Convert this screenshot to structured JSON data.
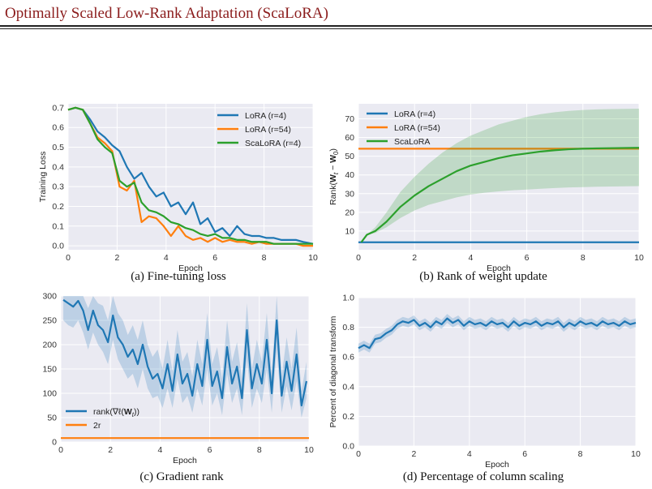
{
  "header": {
    "title": "Optimally Scaled Low-Rank Adaptation (ScaLoRA)"
  },
  "captions": {
    "a": "(a) Fine-tuning loss",
    "b": "(b) Rank of weight update",
    "c": "(c) Gradient rank",
    "d": "(d) Percentage of column scaling"
  },
  "colors": {
    "blue": "#1f77b4",
    "orange": "#ff7f0e",
    "green": "#2ca02c",
    "panel_bg": "#eaeaf2",
    "grid": "#ffffff"
  },
  "chart_data": [
    {
      "id": "a",
      "type": "line",
      "xlabel": "Epoch",
      "ylabel": "Training Loss",
      "xlim": [
        0,
        10
      ],
      "ylim": [
        -0.02,
        0.72
      ],
      "xticks": [
        "0",
        "2",
        "4",
        "6",
        "8",
        "10"
      ],
      "yticks": [
        "0.0",
        "0.1",
        "0.2",
        "0.3",
        "0.4",
        "0.5",
        "0.6",
        "0.7"
      ],
      "legend": "top-right",
      "grid": true,
      "series": [
        {
          "name": "LoRA (r=4)",
          "color": "blue",
          "x": [
            0,
            0.3,
            0.6,
            0.9,
            1.2,
            1.5,
            1.8,
            2.1,
            2.4,
            2.7,
            3.0,
            3.3,
            3.6,
            3.9,
            4.2,
            4.5,
            4.8,
            5.1,
            5.4,
            5.7,
            6.0,
            6.3,
            6.6,
            6.9,
            7.2,
            7.5,
            7.8,
            8.1,
            8.4,
            8.7,
            9.0,
            9.3,
            9.6,
            10
          ],
          "y": [
            0.69,
            0.7,
            0.69,
            0.64,
            0.58,
            0.55,
            0.51,
            0.48,
            0.4,
            0.34,
            0.37,
            0.3,
            0.25,
            0.27,
            0.2,
            0.22,
            0.16,
            0.22,
            0.11,
            0.14,
            0.07,
            0.09,
            0.05,
            0.1,
            0.06,
            0.05,
            0.05,
            0.04,
            0.04,
            0.03,
            0.03,
            0.03,
            0.02,
            0.01
          ]
        },
        {
          "name": "LoRA (r=54)",
          "color": "orange",
          "x": [
            0,
            0.3,
            0.6,
            0.9,
            1.2,
            1.5,
            1.8,
            2.1,
            2.4,
            2.7,
            3.0,
            3.3,
            3.6,
            3.9,
            4.2,
            4.5,
            4.8,
            5.1,
            5.4,
            5.7,
            6.0,
            6.3,
            6.6,
            6.9,
            7.2,
            7.5,
            7.8,
            8.1,
            8.4,
            8.7,
            9.0,
            9.3,
            9.6,
            10
          ],
          "y": [
            0.69,
            0.7,
            0.69,
            0.62,
            0.55,
            0.52,
            0.48,
            0.3,
            0.28,
            0.33,
            0.12,
            0.15,
            0.14,
            0.1,
            0.05,
            0.1,
            0.05,
            0.03,
            0.04,
            0.02,
            0.04,
            0.02,
            0.03,
            0.02,
            0.02,
            0.01,
            0.02,
            0.01,
            0.01,
            0.01,
            0.01,
            0.01,
            0.0,
            0.0
          ]
        },
        {
          "name": "ScaLoRA (r=4)",
          "color": "green",
          "x": [
            0,
            0.3,
            0.6,
            0.9,
            1.2,
            1.5,
            1.8,
            2.1,
            2.4,
            2.7,
            3.0,
            3.3,
            3.6,
            3.9,
            4.2,
            4.5,
            4.8,
            5.1,
            5.4,
            5.7,
            6.0,
            6.3,
            6.6,
            6.9,
            7.2,
            7.5,
            7.8,
            8.1,
            8.4,
            8.7,
            9.0,
            9.3,
            9.6,
            10
          ],
          "y": [
            0.69,
            0.7,
            0.69,
            0.62,
            0.54,
            0.5,
            0.47,
            0.33,
            0.3,
            0.32,
            0.22,
            0.18,
            0.17,
            0.15,
            0.12,
            0.11,
            0.09,
            0.08,
            0.06,
            0.05,
            0.06,
            0.04,
            0.04,
            0.03,
            0.03,
            0.02,
            0.02,
            0.02,
            0.01,
            0.01,
            0.01,
            0.01,
            0.01,
            0.01
          ]
        }
      ]
    },
    {
      "id": "b",
      "type": "line",
      "xlabel": "Epoch",
      "ylabel": "Rank(W_t − W_0)",
      "ylabel_parts": {
        "pre": "Rank(",
        "w1": "W",
        "s1": "t",
        "mid": " − ",
        "w2": "W",
        "s2": "0",
        "post": ")"
      },
      "xlim": [
        0,
        10
      ],
      "ylim": [
        0,
        78
      ],
      "xticks": [
        "0",
        "2",
        "4",
        "6",
        "8",
        "10"
      ],
      "yticks": [
        "10",
        "20",
        "30",
        "40",
        "50",
        "60",
        "70"
      ],
      "legend": "top-left",
      "grid": true,
      "series": [
        {
          "name": "LoRA (r=4)",
          "color": "blue",
          "x": [
            0,
            10
          ],
          "y": [
            4,
            4
          ]
        },
        {
          "name": "LoRA (r=54)",
          "color": "orange",
          "x": [
            0,
            10
          ],
          "y": [
            54,
            54
          ]
        },
        {
          "name": "ScaLoRA",
          "color": "green",
          "x": [
            0.1,
            0.3,
            0.6,
            1.0,
            1.5,
            2.0,
            2.5,
            3.0,
            3.5,
            4.0,
            4.5,
            5.0,
            5.5,
            6.0,
            6.5,
            7.0,
            7.5,
            8.0,
            8.5,
            9.0,
            9.5,
            10
          ],
          "y": [
            4,
            8,
            10,
            15,
            23,
            29,
            34,
            38,
            42,
            45,
            47,
            49,
            50.5,
            51.5,
            52.5,
            53.2,
            53.7,
            54,
            54.2,
            54.3,
            54.4,
            54.5
          ],
          "band_low": [
            4,
            8,
            9,
            12,
            17,
            21,
            24,
            26,
            28,
            29.5,
            30.5,
            31.2,
            31.8,
            32.2,
            32.6,
            33,
            33.3,
            33.5,
            33.7,
            33.8,
            33.9,
            34
          ],
          "band_high": [
            4,
            8,
            12,
            20,
            31,
            39,
            46,
            52,
            57,
            61,
            64,
            67,
            69,
            71,
            72.5,
            73.5,
            74.2,
            74.7,
            75,
            75.2,
            75.3,
            75.4
          ]
        }
      ]
    },
    {
      "id": "c",
      "type": "line",
      "xlabel": "Epoch",
      "ylabel": "",
      "xlim": [
        0,
        10
      ],
      "ylim": [
        0,
        300
      ],
      "xticks": [
        "0",
        "2",
        "4",
        "6",
        "8",
        "10"
      ],
      "yticks": [
        "0",
        "50",
        "100",
        "150",
        "200",
        "250",
        "300"
      ],
      "legend": "bottom-left",
      "grid": true,
      "series": [
        {
          "name": "rank(∇ℓ(W_t))",
          "name_parts": {
            "pre": "rank(∇ℓ(",
            "w": "W",
            "s": "t",
            "post": "))"
          },
          "color": "blue",
          "x": [
            0.1,
            0.3,
            0.5,
            0.7,
            0.9,
            1.1,
            1.3,
            1.5,
            1.7,
            1.9,
            2.1,
            2.3,
            2.5,
            2.7,
            2.9,
            3.1,
            3.3,
            3.5,
            3.7,
            3.9,
            4.1,
            4.3,
            4.5,
            4.7,
            4.9,
            5.1,
            5.3,
            5.5,
            5.7,
            5.9,
            6.1,
            6.3,
            6.5,
            6.7,
            6.9,
            7.1,
            7.3,
            7.5,
            7.7,
            7.9,
            8.1,
            8.3,
            8.5,
            8.7,
            8.9,
            9.1,
            9.3,
            9.5,
            9.7,
            9.9
          ],
          "y": [
            292,
            285,
            278,
            290,
            270,
            230,
            270,
            240,
            230,
            205,
            260,
            215,
            200,
            175,
            190,
            160,
            200,
            155,
            130,
            140,
            110,
            160,
            105,
            180,
            120,
            140,
            95,
            160,
            115,
            210,
            115,
            145,
            90,
            195,
            120,
            155,
            90,
            230,
            110,
            160,
            120,
            210,
            100,
            250,
            95,
            165,
            105,
            180,
            75,
            125
          ],
          "band_low": [
            250,
            240,
            235,
            250,
            225,
            190,
            225,
            200,
            185,
            160,
            210,
            170,
            150,
            130,
            140,
            110,
            150,
            110,
            90,
            95,
            70,
            110,
            70,
            130,
            80,
            95,
            60,
            110,
            75,
            150,
            75,
            100,
            55,
            140,
            80,
            110,
            55,
            170,
            70,
            110,
            80,
            150,
            60,
            190,
            60,
            115,
            65,
            125,
            50,
            90
          ],
          "band_high": [
            300,
            300,
            300,
            300,
            300,
            275,
            300,
            285,
            280,
            250,
            300,
            265,
            250,
            220,
            240,
            210,
            250,
            200,
            175,
            190,
            150,
            210,
            145,
            230,
            165,
            185,
            135,
            210,
            160,
            265,
            160,
            195,
            130,
            250,
            165,
            205,
            130,
            285,
            150,
            210,
            165,
            265,
            140,
            300,
            135,
            215,
            150,
            235,
            105,
            165
          ]
        },
        {
          "name": "2r",
          "color": "orange",
          "x": [
            0,
            10
          ],
          "y": [
            8,
            8
          ]
        }
      ]
    },
    {
      "id": "d",
      "type": "line",
      "xlabel": "Epoch",
      "ylabel": "Percent of diagonal transform",
      "xlim": [
        0,
        10
      ],
      "ylim": [
        0,
        1.0
      ],
      "xticks": [
        "0",
        "2",
        "4",
        "6",
        "8",
        "10"
      ],
      "yticks": [
        "0.0",
        "0.2",
        "0.4",
        "0.6",
        "0.8",
        "1.0"
      ],
      "legend": "none",
      "grid": true,
      "series": [
        {
          "name": "",
          "color": "blue",
          "x": [
            0.0,
            0.2,
            0.4,
            0.6,
            0.8,
            1.0,
            1.2,
            1.4,
            1.6,
            1.8,
            2.0,
            2.2,
            2.4,
            2.6,
            2.8,
            3.0,
            3.2,
            3.4,
            3.6,
            3.8,
            4.0,
            4.2,
            4.4,
            4.6,
            4.8,
            5.0,
            5.2,
            5.4,
            5.6,
            5.8,
            6.0,
            6.2,
            6.4,
            6.6,
            6.8,
            7.0,
            7.2,
            7.4,
            7.6,
            7.8,
            8.0,
            8.2,
            8.4,
            8.6,
            8.8,
            9.0,
            9.2,
            9.4,
            9.6,
            9.8,
            10.0
          ],
          "y": [
            0.66,
            0.68,
            0.66,
            0.72,
            0.73,
            0.76,
            0.78,
            0.82,
            0.84,
            0.83,
            0.85,
            0.81,
            0.83,
            0.8,
            0.84,
            0.82,
            0.86,
            0.83,
            0.85,
            0.81,
            0.84,
            0.82,
            0.83,
            0.81,
            0.84,
            0.82,
            0.83,
            0.8,
            0.84,
            0.81,
            0.83,
            0.82,
            0.84,
            0.81,
            0.83,
            0.82,
            0.84,
            0.8,
            0.83,
            0.81,
            0.84,
            0.82,
            0.83,
            0.81,
            0.84,
            0.82,
            0.83,
            0.81,
            0.84,
            0.82,
            0.83
          ],
          "band_low": [
            0.63,
            0.65,
            0.63,
            0.69,
            0.7,
            0.73,
            0.75,
            0.79,
            0.81,
            0.8,
            0.82,
            0.78,
            0.8,
            0.77,
            0.81,
            0.79,
            0.83,
            0.8,
            0.82,
            0.78,
            0.81,
            0.79,
            0.8,
            0.78,
            0.81,
            0.79,
            0.8,
            0.77,
            0.81,
            0.78,
            0.8,
            0.79,
            0.81,
            0.78,
            0.8,
            0.79,
            0.81,
            0.77,
            0.8,
            0.78,
            0.81,
            0.79,
            0.8,
            0.78,
            0.81,
            0.79,
            0.8,
            0.78,
            0.81,
            0.79,
            0.8
          ],
          "band_high": [
            0.69,
            0.71,
            0.69,
            0.75,
            0.76,
            0.79,
            0.81,
            0.85,
            0.87,
            0.86,
            0.88,
            0.84,
            0.86,
            0.83,
            0.87,
            0.85,
            0.89,
            0.86,
            0.88,
            0.84,
            0.87,
            0.85,
            0.86,
            0.84,
            0.87,
            0.85,
            0.86,
            0.83,
            0.87,
            0.84,
            0.86,
            0.85,
            0.87,
            0.84,
            0.86,
            0.85,
            0.87,
            0.83,
            0.86,
            0.84,
            0.87,
            0.85,
            0.86,
            0.84,
            0.87,
            0.85,
            0.86,
            0.84,
            0.87,
            0.85,
            0.86
          ]
        }
      ]
    }
  ]
}
